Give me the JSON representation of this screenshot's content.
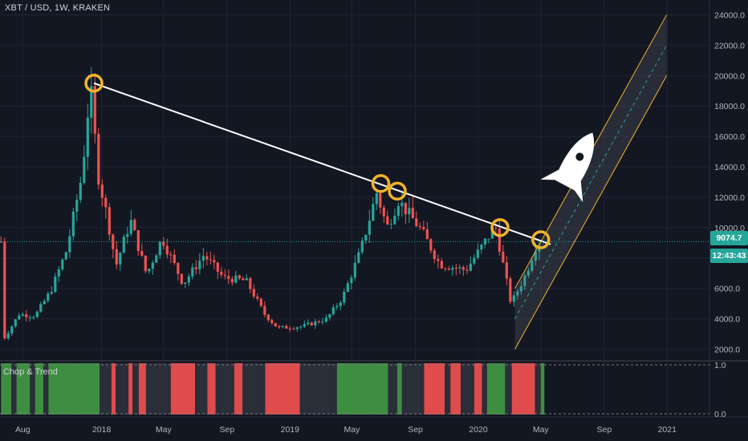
{
  "header": {
    "title": "XBT / USD, 1W, KRAKEN"
  },
  "indicator": {
    "label": "Chop & Trend"
  },
  "badges": {
    "last_price": "9074.7",
    "countdown": "12:43:43"
  },
  "colors": {
    "background": "#131722",
    "grid": "#1e2433",
    "up": "#26a69a",
    "down": "#ef5350",
    "trendline": "#ffffff",
    "circle": "#f0b429",
    "channel": "#f0b429",
    "price_line": "#26a69a",
    "bar_green": "#3e8e41",
    "bar_red": "#e04b4b",
    "bar_dark": "#2a2e39"
  },
  "chart_data": {
    "type": "candlestick",
    "symbol": "XBT / USD",
    "interval": "1W",
    "exchange": "KRAKEN",
    "y_ticks": [
      "24000.0",
      "22000.0",
      "20000.0",
      "18000.0",
      "16000.0",
      "14000.0",
      "12000.0",
      "10000.0",
      "8000.0",
      "6000.0",
      "4000.0",
      "2000.0"
    ],
    "y_tick_values": [
      24000,
      22000,
      20000,
      18000,
      16000,
      14000,
      12000,
      10000,
      8000,
      6000,
      4000,
      2000
    ],
    "x_ticks": [
      "Aug",
      "2018",
      "May",
      "Sep",
      "2019",
      "May",
      "Sep",
      "2020",
      "May",
      "Sep",
      "2021"
    ],
    "last_price": 9074.7,
    "path_points": [
      {
        "d": "2017-07-01",
        "v": 2600
      },
      {
        "d": "2017-08-01",
        "v": 4300
      },
      {
        "d": "2017-09-01",
        "v": 4200
      },
      {
        "d": "2017-10-01",
        "v": 5800
      },
      {
        "d": "2017-11-01",
        "v": 8500
      },
      {
        "d": "2017-12-01",
        "v": 13500
      },
      {
        "d": "2017-12-17",
        "v": 19400
      },
      {
        "d": "2018-01-01",
        "v": 13500
      },
      {
        "d": "2018-01-20",
        "v": 10500
      },
      {
        "d": "2018-02-05",
        "v": 7500
      },
      {
        "d": "2018-03-05",
        "v": 10500
      },
      {
        "d": "2018-04-05",
        "v": 6900
      },
      {
        "d": "2018-05-05",
        "v": 9300
      },
      {
        "d": "2018-06-15",
        "v": 6300
      },
      {
        "d": "2018-07-25",
        "v": 8200
      },
      {
        "d": "2018-09-01",
        "v": 6700
      },
      {
        "d": "2018-10-15",
        "v": 6500
      },
      {
        "d": "2018-11-20",
        "v": 4300
      },
      {
        "d": "2018-12-15",
        "v": 3400
      },
      {
        "d": "2019-02-01",
        "v": 3500
      },
      {
        "d": "2019-03-20",
        "v": 4000
      },
      {
        "d": "2019-04-20",
        "v": 5400
      },
      {
        "d": "2019-05-25",
        "v": 8500
      },
      {
        "d": "2019-06-25",
        "v": 12300
      },
      {
        "d": "2019-07-15",
        "v": 10000
      },
      {
        "d": "2019-08-06",
        "v": 11800
      },
      {
        "d": "2019-09-20",
        "v": 9800
      },
      {
        "d": "2019-10-25",
        "v": 7600
      },
      {
        "d": "2019-12-15",
        "v": 7200
      },
      {
        "d": "2020-02-10",
        "v": 10100
      },
      {
        "d": "2020-03-12",
        "v": 4900
      },
      {
        "d": "2020-03-16",
        "v": 5300
      },
      {
        "d": "2020-04-10",
        "v": 7000
      },
      {
        "d": "2020-05-01",
        "v": 9074.7
      }
    ],
    "trendline": [
      {
        "d": "2017-12-17",
        "v": 19500
      },
      {
        "d": "2020-05-20",
        "v": 8900
      }
    ],
    "marked_points": [
      {
        "d": "2017-12-17",
        "v": 19500
      },
      {
        "d": "2019-06-26",
        "v": 12900
      },
      {
        "d": "2019-07-28",
        "v": 12400
      },
      {
        "d": "2020-02-12",
        "v": 10000
      },
      {
        "d": "2020-05-01",
        "v": 9200
      }
    ],
    "channel": {
      "start": {
        "d": "2020-03-12",
        "v": 4000
      },
      "end": {
        "d": "2020-12-31",
        "v": 22000
      },
      "band_upper_offset": 2000,
      "band_lower_offset": -2000
    },
    "indicator": {
      "name": "Chop & Trend",
      "y_ticks": [
        "1.0",
        "0.0"
      ],
      "y_tick_values": [
        1,
        0
      ],
      "segments": [
        {
          "s": "2017-06-20",
          "e": "2017-07-10",
          "c": "green"
        },
        {
          "s": "2017-07-10",
          "e": "2017-07-20",
          "c": "dark"
        },
        {
          "s": "2017-07-20",
          "e": "2017-08-15",
          "c": "green"
        },
        {
          "s": "2017-08-15",
          "e": "2017-08-25",
          "c": "dark"
        },
        {
          "s": "2017-08-25",
          "e": "2017-09-10",
          "c": "green"
        },
        {
          "s": "2017-09-10",
          "e": "2017-09-20",
          "c": "dark"
        },
        {
          "s": "2017-09-20",
          "e": "2017-12-28",
          "c": "green"
        },
        {
          "s": "2017-12-28",
          "e": "2018-01-20",
          "c": "dark"
        },
        {
          "s": "2018-01-20",
          "e": "2018-01-28",
          "c": "red"
        },
        {
          "s": "2018-01-28",
          "e": "2018-02-22",
          "c": "dark"
        },
        {
          "s": "2018-02-22",
          "e": "2018-03-02",
          "c": "red"
        },
        {
          "s": "2018-03-02",
          "e": "2018-03-14",
          "c": "dark"
        },
        {
          "s": "2018-03-14",
          "e": "2018-03-28",
          "c": "red"
        },
        {
          "s": "2018-03-28",
          "e": "2018-05-15",
          "c": "dark"
        },
        {
          "s": "2018-05-15",
          "e": "2018-07-01",
          "c": "red"
        },
        {
          "s": "2018-07-01",
          "e": "2018-07-25",
          "c": "dark"
        },
        {
          "s": "2018-07-25",
          "e": "2018-08-10",
          "c": "red"
        },
        {
          "s": "2018-08-10",
          "e": "2018-09-15",
          "c": "dark"
        },
        {
          "s": "2018-09-15",
          "e": "2018-10-01",
          "c": "red"
        },
        {
          "s": "2018-10-01",
          "e": "2018-11-14",
          "c": "dark"
        },
        {
          "s": "2018-11-14",
          "e": "2019-01-20",
          "c": "red"
        },
        {
          "s": "2019-01-20",
          "e": "2019-04-02",
          "c": "dark"
        },
        {
          "s": "2019-04-02",
          "e": "2019-07-10",
          "c": "green"
        },
        {
          "s": "2019-07-10",
          "e": "2019-07-28",
          "c": "dark"
        },
        {
          "s": "2019-07-28",
          "e": "2019-08-06",
          "c": "green"
        },
        {
          "s": "2019-08-06",
          "e": "2019-09-18",
          "c": "dark"
        },
        {
          "s": "2019-09-18",
          "e": "2019-10-28",
          "c": "red"
        },
        {
          "s": "2019-10-28",
          "e": "2019-11-08",
          "c": "dark"
        },
        {
          "s": "2019-11-08",
          "e": "2019-11-28",
          "c": "red"
        },
        {
          "s": "2019-11-28",
          "e": "2019-12-24",
          "c": "dark"
        },
        {
          "s": "2019-12-24",
          "e": "2020-01-08",
          "c": "red"
        },
        {
          "s": "2020-01-08",
          "e": "2020-01-18",
          "c": "dark"
        },
        {
          "s": "2020-01-18",
          "e": "2020-02-22",
          "c": "green"
        },
        {
          "s": "2020-02-22",
          "e": "2020-03-06",
          "c": "dark"
        },
        {
          "s": "2020-03-06",
          "e": "2020-04-20",
          "c": "red"
        },
        {
          "s": "2020-04-20",
          "e": "2020-05-01",
          "c": "dark"
        },
        {
          "s": "2020-05-01",
          "e": "2020-05-08",
          "c": "green"
        }
      ]
    }
  }
}
